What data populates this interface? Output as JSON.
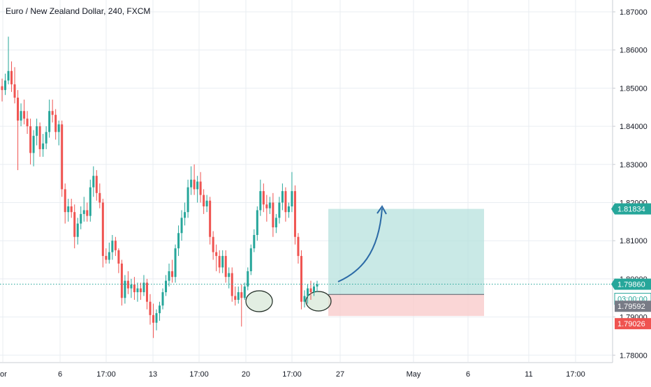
{
  "header": {
    "title": "Euro / New Zealand Dollar, 240, FXCM"
  },
  "colors": {
    "up": "#26a69a",
    "down": "#ef5350",
    "grid": "#e9edf2",
    "profit_zone": "#b2dfdb",
    "loss_zone": "#f8c8c8",
    "price_line": "#26a69a",
    "arrow": "#2b6aa6",
    "ellipse_fill": "#cfe3cf",
    "price_badge": "#26a69a",
    "target_badge": "#26a69a",
    "stop_badge": "#ef5350",
    "timer_badge": "#ffffff",
    "entry_badge": "#787b86"
  },
  "chart_data": {
    "type": "candlestick",
    "title": "Euro / New Zealand Dollar, 240, FXCM",
    "ylim": [
      1.775,
      1.875
    ],
    "y_ticks": [
      1.78,
      1.79,
      1.8,
      1.81,
      1.82,
      1.83,
      1.84,
      1.85,
      1.86,
      1.87
    ],
    "y_tick_labels": [
      "1.78000",
      "1.79000",
      "1.80000",
      "1.81000",
      "1.82000",
      "1.83000",
      "1.84000",
      "1.85000",
      "1.86000",
      "1.87000"
    ],
    "x_tick_labels": [
      "or",
      "6",
      "17:00",
      "13",
      "17:00",
      "20",
      "17:00",
      "27",
      "May",
      "6",
      "11",
      "17:00"
    ],
    "grid": true,
    "candles": [
      [
        1.8505,
        1.8525,
        1.8465,
        1.8495
      ],
      [
        1.8495,
        1.8538,
        1.8482,
        1.852
      ],
      [
        1.852,
        1.8635,
        1.851,
        1.8545
      ],
      [
        1.8545,
        1.857,
        1.849,
        1.851
      ],
      [
        1.851,
        1.8555,
        1.846,
        1.8475
      ],
      [
        1.8475,
        1.8495,
        1.8285,
        1.8415
      ],
      [
        1.8415,
        1.846,
        1.84,
        1.844
      ],
      [
        1.844,
        1.847,
        1.8405,
        1.842
      ],
      [
        1.842,
        1.844,
        1.838,
        1.84
      ],
      [
        1.84,
        1.842,
        1.83,
        1.833
      ],
      [
        1.833,
        1.839,
        1.8295,
        1.8375
      ],
      [
        1.8375,
        1.842,
        1.835,
        1.84
      ],
      [
        1.84,
        1.841,
        1.832,
        1.834
      ],
      [
        1.834,
        1.838,
        1.832,
        1.8355
      ],
      [
        1.8355,
        1.84,
        1.834,
        1.8385
      ],
      [
        1.8385,
        1.847,
        1.837,
        1.844
      ],
      [
        1.844,
        1.847,
        1.841,
        1.843
      ],
      [
        1.843,
        1.8445,
        1.8365,
        1.8385
      ],
      [
        1.8385,
        1.8415,
        1.835,
        1.8405
      ],
      [
        1.8405,
        1.8415,
        1.8215,
        1.8235
      ],
      [
        1.8235,
        1.825,
        1.8145,
        1.8175
      ],
      [
        1.8175,
        1.821,
        1.815,
        1.819
      ],
      [
        1.819,
        1.821,
        1.816,
        1.8175
      ],
      [
        1.8175,
        1.8195,
        1.808,
        1.811
      ],
      [
        1.811,
        1.816,
        1.809,
        1.8145
      ],
      [
        1.8145,
        1.819,
        1.813,
        1.817
      ],
      [
        1.817,
        1.8215,
        1.815,
        1.818
      ],
      [
        1.818,
        1.82,
        1.815,
        1.8165
      ],
      [
        1.8165,
        1.826,
        1.815,
        1.824
      ],
      [
        1.824,
        1.8295,
        1.8215,
        1.827
      ],
      [
        1.827,
        1.8285,
        1.8205,
        1.8225
      ],
      [
        1.8225,
        1.825,
        1.8185,
        1.82
      ],
      [
        1.82,
        1.821,
        1.803,
        1.806
      ],
      [
        1.806,
        1.808,
        1.804,
        1.805
      ],
      [
        1.805,
        1.8095,
        1.804,
        1.807
      ],
      [
        1.807,
        1.8115,
        1.805,
        1.81
      ],
      [
        1.81,
        1.811,
        1.806,
        1.8075
      ],
      [
        1.8075,
        1.808,
        1.8015,
        1.804
      ],
      [
        1.804,
        1.805,
        1.793,
        1.795
      ],
      [
        1.795,
        1.801,
        1.7935,
        1.7995
      ],
      [
        1.7995,
        1.802,
        1.796,
        1.7975
      ],
      [
        1.7975,
        1.8,
        1.795,
        1.7985
      ],
      [
        1.7985,
        1.8005,
        1.7945,
        1.7965
      ],
      [
        1.7965,
        1.799,
        1.794,
        1.7975
      ],
      [
        1.7975,
        1.799,
        1.7945,
        1.7965
      ],
      [
        1.7965,
        1.801,
        1.7955,
        1.799
      ],
      [
        1.799,
        1.8,
        1.792,
        1.794
      ],
      [
        1.794,
        1.796,
        1.788,
        1.7905
      ],
      [
        1.7905,
        1.7935,
        1.7845,
        1.7885
      ],
      [
        1.7885,
        1.792,
        1.7865,
        1.791
      ],
      [
        1.791,
        1.794,
        1.789,
        1.793
      ],
      [
        1.793,
        1.7975,
        1.792,
        1.7965
      ],
      [
        1.7965,
        1.801,
        1.7955,
        1.7995
      ],
      [
        1.7995,
        1.804,
        1.798,
        1.802
      ],
      [
        1.802,
        1.805,
        1.799,
        1.8005
      ],
      [
        1.8005,
        1.809,
        1.799,
        1.808
      ],
      [
        1.808,
        1.814,
        1.806,
        1.812
      ],
      [
        1.812,
        1.818,
        1.81,
        1.816
      ],
      [
        1.816,
        1.82,
        1.814,
        1.8175
      ],
      [
        1.8175,
        1.826,
        1.816,
        1.824
      ],
      [
        1.824,
        1.8295,
        1.822,
        1.826
      ],
      [
        1.826,
        1.83,
        1.822,
        1.8235
      ],
      [
        1.8235,
        1.827,
        1.82,
        1.8255
      ],
      [
        1.8255,
        1.828,
        1.82,
        1.822
      ],
      [
        1.822,
        1.8235,
        1.817,
        1.819
      ],
      [
        1.819,
        1.822,
        1.8175,
        1.8205
      ],
      [
        1.8205,
        1.8215,
        1.809,
        1.811
      ],
      [
        1.811,
        1.8125,
        1.805,
        1.807
      ],
      [
        1.807,
        1.809,
        1.802,
        1.806
      ],
      [
        1.806,
        1.8075,
        1.8015,
        1.803
      ],
      [
        1.803,
        1.8075,
        1.8015,
        1.806
      ],
      [
        1.806,
        1.8075,
        1.799,
        1.8005
      ],
      [
        1.8005,
        1.803,
        1.7975,
        1.8015
      ],
      [
        1.8015,
        1.803,
        1.794,
        1.7955
      ],
      [
        1.7955,
        1.798,
        1.793,
        1.7945
      ],
      [
        1.7945,
        1.798,
        1.7935,
        1.7965
      ],
      [
        1.7965,
        1.7985,
        1.7875,
        1.795
      ],
      [
        1.795,
        1.799,
        1.7945,
        1.798
      ],
      [
        1.798,
        1.803,
        1.797,
        1.802
      ],
      [
        1.802,
        1.809,
        1.801,
        1.808
      ],
      [
        1.808,
        1.813,
        1.807,
        1.8115
      ],
      [
        1.8115,
        1.819,
        1.81,
        1.818
      ],
      [
        1.818,
        1.826,
        1.8165,
        1.823
      ],
      [
        1.823,
        1.825,
        1.8175,
        1.8195
      ],
      [
        1.8195,
        1.822,
        1.815,
        1.8185
      ],
      [
        1.8185,
        1.8215,
        1.817,
        1.82
      ],
      [
        1.82,
        1.8225,
        1.811,
        1.8135
      ],
      [
        1.8135,
        1.817,
        1.812,
        1.816
      ],
      [
        1.816,
        1.8215,
        1.8145,
        1.82
      ],
      [
        1.82,
        1.825,
        1.818,
        1.823
      ],
      [
        1.823,
        1.824,
        1.815,
        1.8175
      ],
      [
        1.8175,
        1.82,
        1.816,
        1.819
      ],
      [
        1.819,
        1.828,
        1.8175,
        1.823
      ],
      [
        1.823,
        1.8245,
        1.809,
        1.811
      ],
      [
        1.811,
        1.812,
        1.804,
        1.806
      ],
      [
        1.806,
        1.8075,
        1.792,
        1.794
      ],
      [
        1.794,
        1.797,
        1.7925,
        1.7955
      ],
      [
        1.7955,
        1.7985,
        1.7935,
        1.7975
      ],
      [
        1.7975,
        1.7995,
        1.7945,
        1.7965
      ],
      [
        1.7965,
        1.799,
        1.7955,
        1.798
      ],
      [
        1.798,
        1.7995,
        1.7965,
        1.7986
      ]
    ],
    "price_line": 1.7986,
    "position": {
      "entry": 1.79592,
      "target": 1.81834,
      "stop": 1.79026
    },
    "y_badges": [
      {
        "label": "1.81834",
        "value": 1.81834,
        "kind": "target"
      },
      {
        "label": "1.79860",
        "value": 1.7986,
        "kind": "price"
      },
      {
        "label": "03:00:00",
        "value": 1.7986,
        "kind": "timer"
      },
      {
        "label": "1.79592",
        "value": 1.79592,
        "kind": "entry"
      },
      {
        "label": "1.79026",
        "value": 1.79026,
        "kind": "stop"
      }
    ]
  }
}
